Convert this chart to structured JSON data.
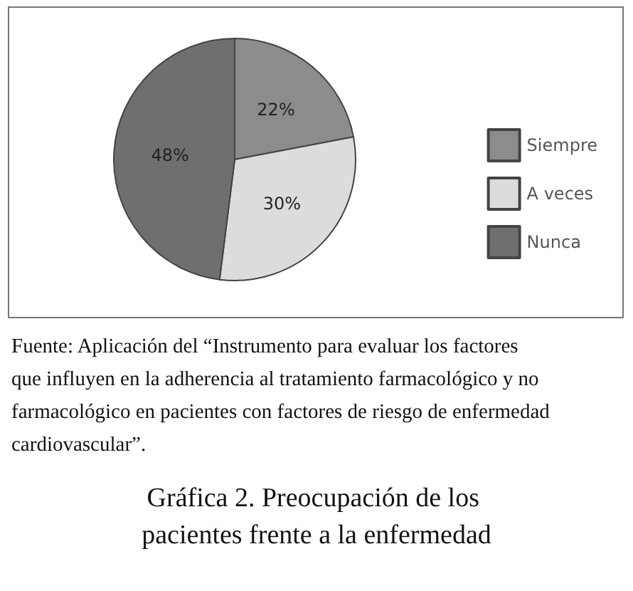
{
  "chart_data": {
    "type": "pie",
    "title": "Gráfica 2. Preocupación de los pacientes frente a la enfermedad",
    "categories": [
      "Siempre",
      "A veces",
      "Nunca"
    ],
    "values": [
      22,
      30,
      48
    ],
    "value_labels": [
      "22%",
      "30%",
      "48%"
    ],
    "colors": [
      "#8c8c8c",
      "#dcdcdc",
      "#6f6f6f"
    ],
    "data_labels": true,
    "legend": "right",
    "annotations": [
      "Fuente: Aplicación del “Instrumento para evaluar los factores que influyen en la adherencia al tratamiento farmacológico y no farmacológico en pacientes con factores de riesgo de enfermedad cardiovascular”."
    ]
  }
}
